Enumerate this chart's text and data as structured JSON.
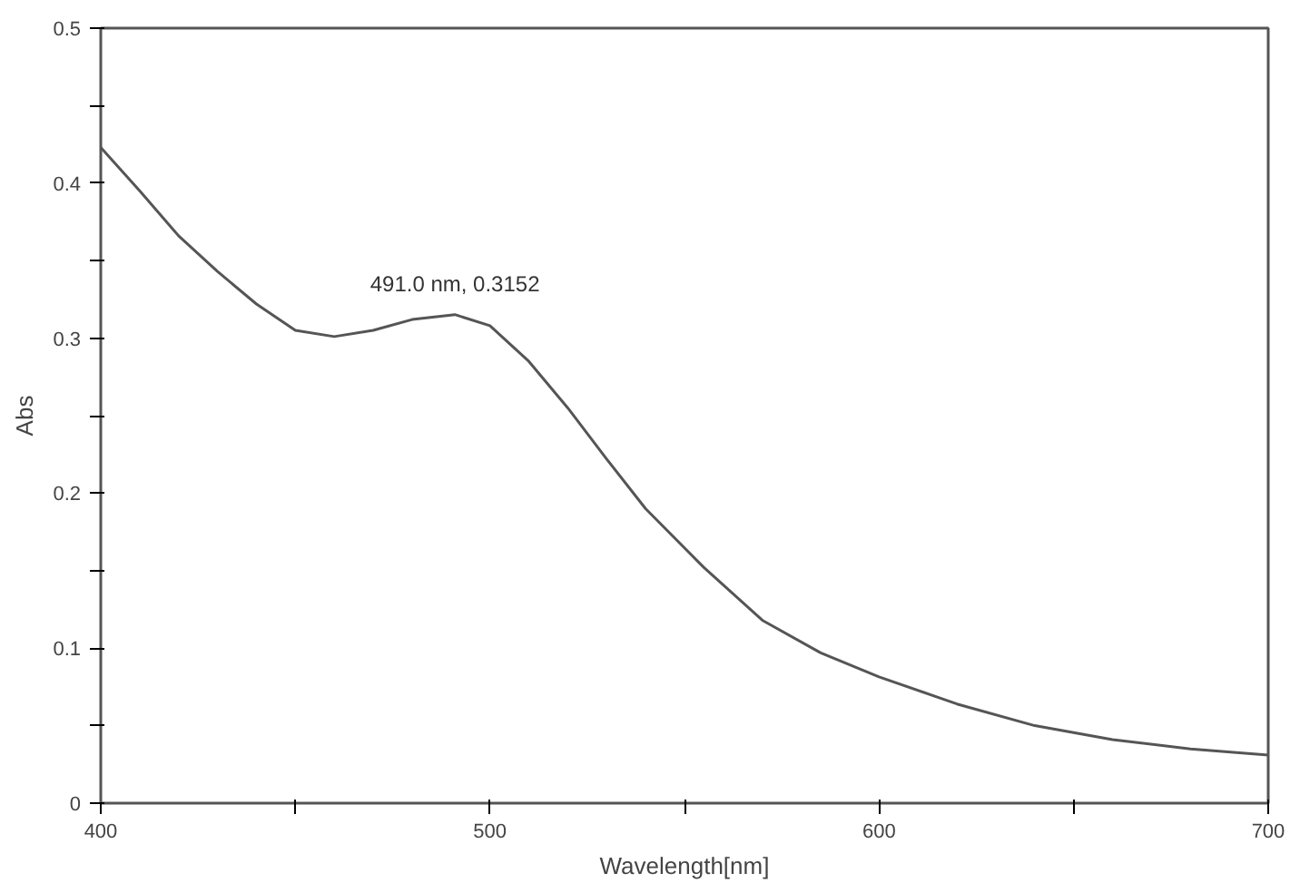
{
  "chart_data": {
    "type": "line",
    "xlabel": "Wavelength[nm]",
    "ylabel": "Abs",
    "x": [
      400,
      410,
      420,
      430,
      440,
      450,
      460,
      470,
      480,
      491,
      500,
      510,
      520,
      530,
      540,
      555,
      570,
      585,
      600,
      620,
      640,
      660,
      680,
      700
    ],
    "series": [
      {
        "color": "#555555",
        "values": [
          0.423,
          0.395,
          0.366,
          0.343,
          0.322,
          0.305,
          0.301,
          0.305,
          0.312,
          0.3152,
          0.308,
          0.285,
          0.255,
          0.222,
          0.19,
          0.152,
          0.118,
          0.097,
          0.0815,
          0.064,
          0.05,
          0.041,
          0.035,
          0.031
        ]
      }
    ],
    "xlim": [
      400,
      700
    ],
    "ylim": [
      0,
      0.5
    ],
    "xticks": [
      400,
      {
        "value": 450,
        "label": null
      },
      500,
      {
        "value": 550,
        "label": null
      },
      600,
      {
        "value": 650,
        "label": null
      },
      700
    ],
    "yticks": [
      0,
      {
        "value": 0.05,
        "label": null
      },
      0.1,
      {
        "value": 0.15,
        "label": null
      },
      0.2,
      {
        "value": 0.25,
        "label": null
      },
      0.3,
      {
        "value": 0.35,
        "label": null
      },
      0.4,
      {
        "value": 0.45,
        "label": null
      },
      0.5
    ],
    "annotations": [
      {
        "text": "491.0 nm, 0.3152",
        "x": 491,
        "y": 0.3152
      }
    ],
    "grid": false,
    "marker": "none",
    "line_style": "solid"
  }
}
